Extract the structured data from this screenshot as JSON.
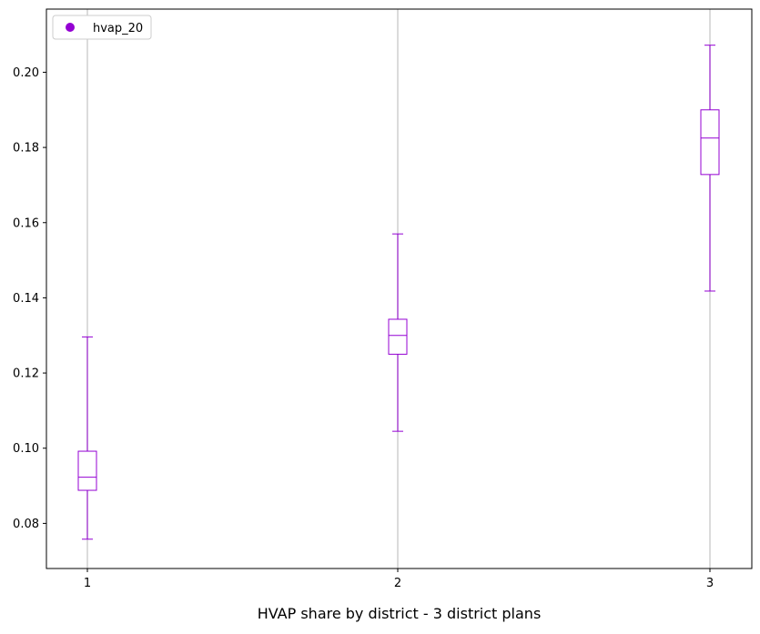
{
  "chart_data": {
    "type": "box",
    "categories": [
      "1",
      "2",
      "3"
    ],
    "series": [
      {
        "name": "hvap_20",
        "color": "#9400d3",
        "boxes": [
          {
            "x": "1",
            "whisker_low": 0.0758,
            "q1": 0.0888,
            "median": 0.0923,
            "q3": 0.0992,
            "whisker_high": 0.1296
          },
          {
            "x": "2",
            "whisker_low": 0.1045,
            "q1": 0.125,
            "median": 0.13,
            "q3": 0.1343,
            "whisker_high": 0.157
          },
          {
            "x": "3",
            "whisker_low": 0.1418,
            "q1": 0.1728,
            "median": 0.1825,
            "q3": 0.19,
            "whisker_high": 0.2072
          }
        ]
      }
    ],
    "xlabel": "HVAP share by district - 3 district plans",
    "ylabel": "",
    "ylim": [
      0.068,
      0.2168
    ],
    "yticks": [
      0.08,
      0.1,
      0.12,
      0.14,
      0.16,
      0.18,
      0.2
    ],
    "ytick_labels": [
      "0.08",
      "0.10",
      "0.12",
      "0.14",
      "0.16",
      "0.18",
      "0.20"
    ],
    "xtick_labels": [
      "1",
      "2",
      "3"
    ],
    "vertical_gridlines_at_categories": true,
    "legend": {
      "position": "top-left",
      "entries": [
        "hvap_20"
      ]
    }
  }
}
